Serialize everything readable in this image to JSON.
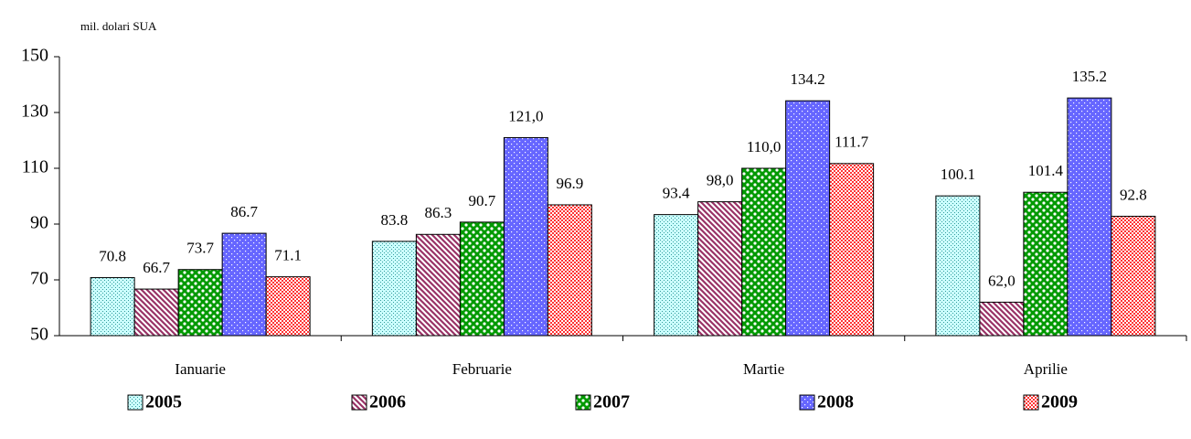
{
  "chart_data": {
    "type": "bar",
    "y_label": "mil. dolari SUA",
    "categories": [
      "Ianuarie",
      "Februarie",
      "Martie",
      "Aprilie"
    ],
    "series": [
      {
        "name": "2005",
        "color": "#ccffff",
        "values": [
          70.8,
          83.8,
          93.4,
          100.1
        ],
        "value_labels": [
          "70.8",
          "83.8",
          "93.4",
          "100.1"
        ]
      },
      {
        "name": "2006",
        "color": "#993366",
        "values": [
          66.7,
          86.3,
          98.0,
          62.0
        ],
        "value_labels": [
          "66.7",
          "86.3",
          "98,0",
          "62,0"
        ]
      },
      {
        "name": "2007",
        "color": "#009900",
        "values": [
          73.7,
          90.7,
          110.0,
          101.4
        ],
        "value_labels": [
          "73.7",
          "90.7",
          "110,0",
          "101.4"
        ]
      },
      {
        "name": "2008",
        "color": "#6666ff",
        "values": [
          86.7,
          121.0,
          134.2,
          135.2
        ],
        "value_labels": [
          "86.7",
          "121,0",
          "134.2",
          "135.2"
        ]
      },
      {
        "name": "2009",
        "color": "#ff3333",
        "values": [
          71.1,
          96.9,
          111.7,
          92.8
        ],
        "value_labels": [
          "71.1",
          "96.9",
          "111.7",
          "92.8"
        ]
      }
    ],
    "ylim": [
      50,
      150
    ],
    "yticks": [
      50,
      70,
      90,
      110,
      130,
      150
    ],
    "grid": false,
    "legend": "bottom"
  }
}
